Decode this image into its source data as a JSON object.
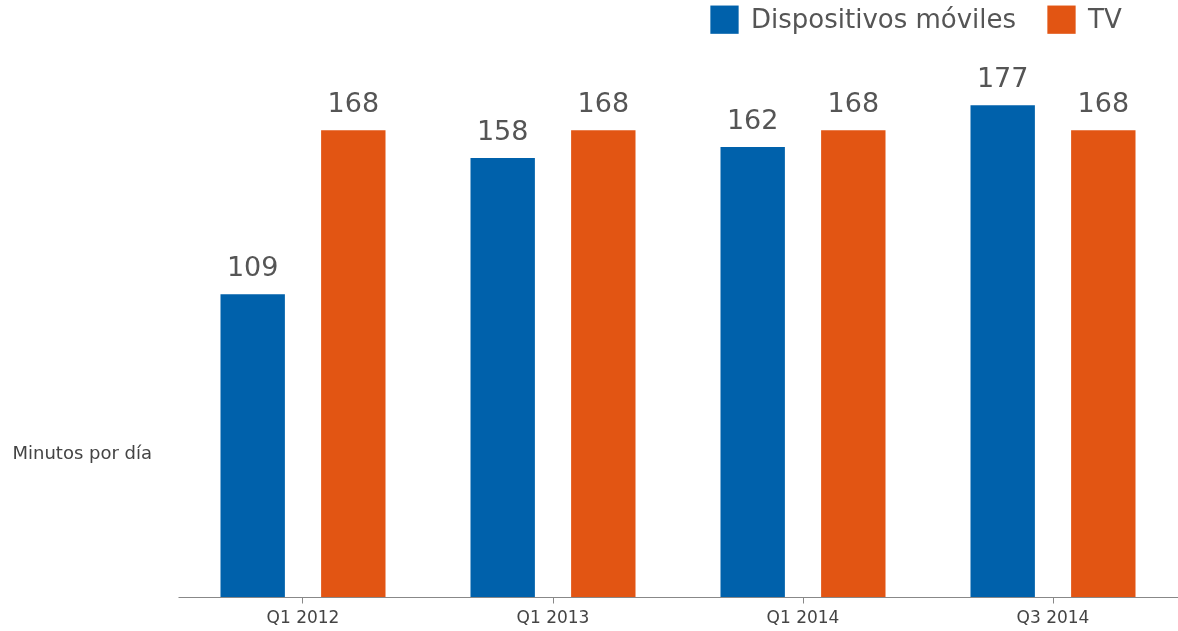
{
  "chart_data": {
    "type": "bar",
    "ylabel": "Minutos por día",
    "categories": [
      "Q1 2012",
      "Q1 2013",
      "Q1 2014",
      "Q3 2014"
    ],
    "series": [
      {
        "name": "Dispositivos móviles",
        "color": "#0061ab",
        "values": [
          109,
          158,
          162,
          177
        ]
      },
      {
        "name": "TV",
        "color": "#e25513",
        "values": [
          168,
          168,
          168,
          168
        ]
      }
    ],
    "data_labels": true,
    "legend": "top right",
    "grid": false,
    "tick_labels": "x"
  }
}
